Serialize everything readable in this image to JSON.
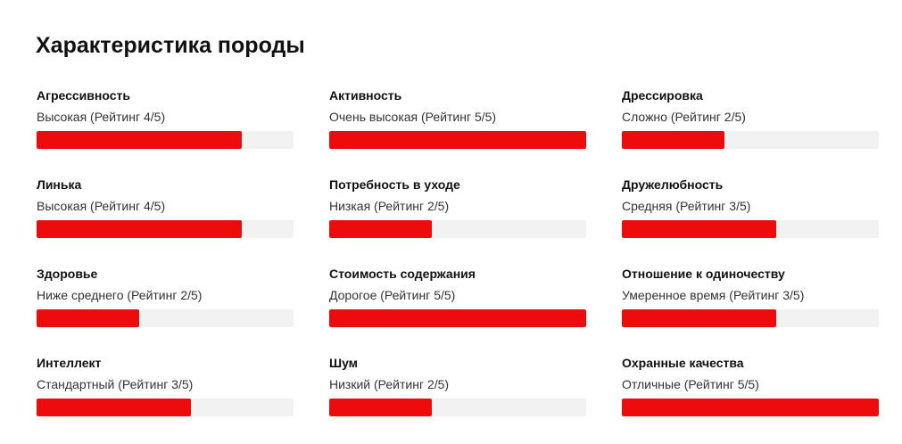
{
  "title": "Характеристика породы",
  "accent_color": "#ee0b0b",
  "track_color": "#f2f2f2",
  "traits": [
    {
      "name": "Агрессивность",
      "value": "Высокая (Рейтинг 4/5)",
      "rating": 4,
      "max": 5
    },
    {
      "name": "Активность",
      "value": "Очень высокая (Рейтинг 5/5)",
      "rating": 5,
      "max": 5
    },
    {
      "name": "Дрессировка",
      "value": "Сложно (Рейтинг 2/5)",
      "rating": 2,
      "max": 5
    },
    {
      "name": "Линька",
      "value": "Высокая (Рейтинг 4/5)",
      "rating": 4,
      "max": 5
    },
    {
      "name": "Потребность в уходе",
      "value": "Низкая (Рейтинг 2/5)",
      "rating": 2,
      "max": 5
    },
    {
      "name": "Дружелюбность",
      "value": "Средняя (Рейтинг 3/5)",
      "rating": 3,
      "max": 5
    },
    {
      "name": "Здоровье",
      "value": "Ниже среднего (Рейтинг 2/5)",
      "rating": 2,
      "max": 5
    },
    {
      "name": "Стоимость содержания",
      "value": "Дорогое (Рейтинг 5/5)",
      "rating": 5,
      "max": 5
    },
    {
      "name": "Отношение к одиночеству",
      "value": "Умеренное время (Рейтинг 3/5)",
      "rating": 3,
      "max": 5
    },
    {
      "name": "Интеллект",
      "value": "Стандартный (Рейтинг 3/5)",
      "rating": 3,
      "max": 5
    },
    {
      "name": "Шум",
      "value": "Низкий (Рейтинг 2/5)",
      "rating": 2,
      "max": 5
    },
    {
      "name": "Охранные качества",
      "value": "Отличные (Рейтинг 5/5)",
      "rating": 5,
      "max": 5
    }
  ]
}
